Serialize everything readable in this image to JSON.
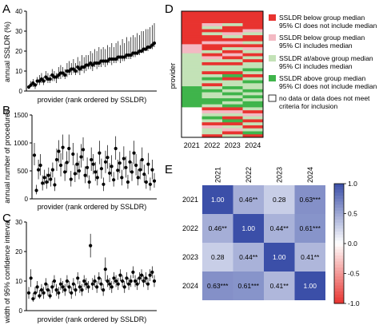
{
  "figure": {
    "panels": [
      "A",
      "B",
      "C",
      "D",
      "E"
    ]
  },
  "chart_data": [
    {
      "panel": "A",
      "type": "scatter",
      "title": "",
      "xlabel": "provider (rank ordered by SSLDR)",
      "ylabel": "annual SSLDR (%)",
      "ylim": [
        0,
        40
      ],
      "yticks": [
        0,
        10,
        20,
        30,
        40
      ],
      "grid": false,
      "series": [
        {
          "y": [
            2,
            3,
            4,
            3,
            5,
            5,
            6,
            5,
            7,
            6,
            6,
            8,
            7,
            7,
            8,
            9,
            9,
            8,
            10,
            10,
            11,
            11,
            10,
            12,
            11,
            12,
            12,
            13,
            13,
            14,
            13,
            14,
            14,
            14,
            15,
            15,
            15,
            15,
            16,
            16,
            16,
            16,
            17,
            17,
            17,
            17,
            18,
            18,
            18,
            19,
            19,
            19,
            20,
            20,
            21,
            21,
            22,
            22,
            23,
            24
          ]
        }
      ],
      "ranges": [
        [
          1,
          3
        ],
        [
          2,
          5
        ],
        [
          2,
          6
        ],
        [
          1,
          4
        ],
        [
          3,
          7
        ],
        [
          3,
          8
        ],
        [
          4,
          9
        ],
        [
          3,
          7
        ],
        [
          5,
          10
        ],
        [
          4,
          9
        ],
        [
          4,
          8
        ],
        [
          5,
          11
        ],
        [
          5,
          10
        ],
        [
          4,
          9
        ],
        [
          6,
          12
        ],
        [
          6,
          13
        ],
        [
          7,
          12
        ],
        [
          6,
          11
        ],
        [
          7,
          14
        ],
        [
          8,
          15
        ],
        [
          8,
          14
        ],
        [
          9,
          16
        ],
        [
          8,
          14
        ],
        [
          9,
          17
        ],
        [
          8,
          15
        ],
        [
          10,
          18
        ],
        [
          9,
          17
        ],
        [
          10,
          18
        ],
        [
          11,
          18
        ],
        [
          11,
          20
        ],
        [
          10,
          19
        ],
        [
          12,
          21
        ],
        [
          11,
          20
        ],
        [
          12,
          22
        ],
        [
          12,
          21
        ],
        [
          13,
          22
        ],
        [
          12,
          21
        ],
        [
          13,
          23
        ],
        [
          14,
          22
        ],
        [
          13,
          24
        ],
        [
          14,
          22
        ],
        [
          14,
          24
        ],
        [
          15,
          25
        ],
        [
          14,
          23
        ],
        [
          15,
          26
        ],
        [
          15,
          24
        ],
        [
          16,
          27
        ],
        [
          16,
          25
        ],
        [
          16,
          27
        ],
        [
          17,
          28
        ],
        [
          17,
          27
        ],
        [
          18,
          29
        ],
        [
          18,
          28
        ],
        [
          19,
          30
        ],
        [
          19,
          30
        ],
        [
          20,
          31
        ],
        [
          20,
          31
        ],
        [
          21,
          32
        ],
        [
          21,
          33
        ],
        [
          22,
          34
        ]
      ]
    },
    {
      "panel": "B",
      "type": "scatter",
      "title": "",
      "xlabel": "provider (rank ordered by SSLDR)",
      "ylabel": "annual number of procedures",
      "ylim": [
        0,
        1500
      ],
      "yticks": [
        0,
        500,
        1000,
        1500
      ],
      "grid": false,
      "series": [
        {
          "y": [
            780,
            150,
            520,
            600,
            280,
            380,
            300,
            420,
            350,
            520,
            250,
            700,
            850,
            600,
            920,
            480,
            650,
            900,
            350,
            800,
            450,
            620,
            500,
            750,
            880,
            420,
            560,
            300,
            700,
            620,
            480,
            380,
            820,
            540,
            260,
            660,
            740,
            460,
            580,
            340,
            900,
            510,
            640,
            380,
            720,
            560,
            300,
            660,
            480,
            820,
            600,
            380,
            520,
            700,
            440,
            300,
            620,
            260,
            520,
            320
          ]
        }
      ],
      "ranges": [
        [
          600,
          1000
        ],
        [
          80,
          250
        ],
        [
          350,
          700
        ],
        [
          420,
          800
        ],
        [
          150,
          420
        ],
        [
          250,
          520
        ],
        [
          180,
          450
        ],
        [
          280,
          560
        ],
        [
          220,
          480
        ],
        [
          380,
          650
        ],
        [
          140,
          380
        ],
        [
          500,
          900
        ],
        [
          650,
          1050
        ],
        [
          400,
          820
        ],
        [
          700,
          1150
        ],
        [
          320,
          650
        ],
        [
          470,
          850
        ],
        [
          650,
          1150
        ],
        [
          220,
          500
        ],
        [
          600,
          1000
        ],
        [
          300,
          620
        ],
        [
          430,
          820
        ],
        [
          350,
          680
        ],
        [
          560,
          980
        ],
        [
          680,
          1100
        ],
        [
          280,
          580
        ],
        [
          380,
          740
        ],
        [
          180,
          420
        ],
        [
          500,
          920
        ],
        [
          440,
          800
        ],
        [
          320,
          660
        ],
        [
          240,
          520
        ],
        [
          620,
          1040
        ],
        [
          360,
          720
        ],
        [
          140,
          380
        ],
        [
          460,
          860
        ],
        [
          540,
          960
        ],
        [
          300,
          640
        ],
        [
          400,
          780
        ],
        [
          220,
          480
        ],
        [
          700,
          1120
        ],
        [
          340,
          700
        ],
        [
          460,
          840
        ],
        [
          240,
          520
        ],
        [
          520,
          940
        ],
        [
          380,
          760
        ],
        [
          180,
          430
        ],
        [
          470,
          860
        ],
        [
          320,
          660
        ],
        [
          620,
          1040
        ],
        [
          420,
          800
        ],
        [
          240,
          530
        ],
        [
          350,
          700
        ],
        [
          500,
          920
        ],
        [
          290,
          610
        ],
        [
          180,
          430
        ],
        [
          440,
          820
        ],
        [
          150,
          380
        ],
        [
          350,
          700
        ],
        [
          200,
          460
        ]
      ]
    },
    {
      "panel": "C",
      "type": "scatter",
      "title": "",
      "xlabel": "provider (rank ordered by SSLDR)",
      "ylabel": "width of 95% confidence interval",
      "ylim": [
        0,
        30
      ],
      "yticks": [
        0,
        10,
        20,
        30
      ],
      "grid": false,
      "series": [
        {
          "y": [
            6,
            11,
            4,
            6,
            8,
            5,
            7,
            6,
            9,
            7,
            5,
            8,
            10,
            7,
            6,
            9,
            8,
            7,
            10,
            8,
            6,
            9,
            7,
            11,
            8,
            7,
            10,
            9,
            8,
            22,
            9,
            10,
            8,
            11,
            9,
            7,
            14,
            10,
            9,
            8,
            11,
            10,
            9,
            12,
            10,
            8,
            11,
            9,
            10,
            13,
            10,
            9,
            11,
            12,
            10,
            11,
            9,
            12,
            13,
            10
          ]
        }
      ],
      "ranges": [
        [
          4,
          8
        ],
        [
          8,
          14
        ],
        [
          3,
          6
        ],
        [
          4,
          8
        ],
        [
          6,
          10
        ],
        [
          4,
          7
        ],
        [
          5,
          9
        ],
        [
          4,
          8
        ],
        [
          7,
          11
        ],
        [
          5,
          9
        ],
        [
          4,
          7
        ],
        [
          6,
          10
        ],
        [
          8,
          12
        ],
        [
          5,
          9
        ],
        [
          4,
          8
        ],
        [
          7,
          11
        ],
        [
          6,
          10
        ],
        [
          5,
          9
        ],
        [
          8,
          12
        ],
        [
          6,
          10
        ],
        [
          4,
          8
        ],
        [
          7,
          11
        ],
        [
          5,
          9
        ],
        [
          9,
          13
        ],
        [
          6,
          10
        ],
        [
          5,
          9
        ],
        [
          8,
          12
        ],
        [
          7,
          11
        ],
        [
          6,
          10
        ],
        [
          18,
          26
        ],
        [
          7,
          11
        ],
        [
          8,
          12
        ],
        [
          6,
          10
        ],
        [
          9,
          13
        ],
        [
          7,
          11
        ],
        [
          5,
          9
        ],
        [
          10,
          18
        ],
        [
          8,
          12
        ],
        [
          7,
          11
        ],
        [
          6,
          10
        ],
        [
          9,
          13
        ],
        [
          8,
          12
        ],
        [
          7,
          11
        ],
        [
          10,
          14
        ],
        [
          8,
          12
        ],
        [
          6,
          10
        ],
        [
          9,
          13
        ],
        [
          7,
          11
        ],
        [
          8,
          12
        ],
        [
          11,
          15
        ],
        [
          8,
          12
        ],
        [
          7,
          11
        ],
        [
          9,
          13
        ],
        [
          10,
          14
        ],
        [
          8,
          12
        ],
        [
          9,
          13
        ],
        [
          7,
          11
        ],
        [
          10,
          14
        ],
        [
          11,
          15
        ],
        [
          8,
          12
        ]
      ]
    },
    {
      "panel": "D",
      "type": "heatmap",
      "title": "",
      "xlabel": "",
      "ylabel": "provider",
      "columns": [
        "2021",
        "2022",
        "2023",
        "2024"
      ],
      "legend": [
        {
          "label": "SSLDR below group median 95% CI does not include median",
          "color": "#e8332f"
        },
        {
          "label": "SSLDR below group median 95% CI includes median",
          "color": "#f3b9c3"
        },
        {
          "label": "SSLDR at/above group median 95% CI includes median",
          "color": "#c3e2b7"
        },
        {
          "label": "SSLDR above group median 95% CI does not include median",
          "color": "#3fb44b"
        },
        {
          "label": "no data or data does not meet criteria for inclusion",
          "color": "#ffffff"
        }
      ],
      "codes": {
        "col2021": [
          0,
          0,
          0,
          0,
          0,
          0,
          0,
          0,
          0,
          0,
          0,
          1,
          1,
          1,
          2,
          2,
          2,
          2,
          2,
          2,
          2,
          2,
          2,
          2,
          2,
          3,
          3,
          3,
          3,
          3,
          3,
          3,
          4,
          4,
          4,
          4,
          4,
          4,
          4,
          4,
          4,
          4
        ],
        "col2022": [
          0,
          0,
          0,
          0,
          1,
          2,
          0,
          2,
          0,
          0,
          1,
          0,
          0,
          2,
          0,
          1,
          2,
          0,
          2,
          2,
          0,
          2,
          3,
          2,
          0,
          2,
          3,
          2,
          2,
          3,
          3,
          2,
          0,
          1,
          2,
          3,
          2,
          0,
          1,
          2,
          2,
          0
        ],
        "col2023": [
          0,
          0,
          0,
          0,
          2,
          0,
          0,
          1,
          2,
          0,
          1,
          0,
          2,
          0,
          1,
          0,
          2,
          0,
          2,
          2,
          0,
          3,
          0,
          2,
          2,
          3,
          2,
          3,
          2,
          3,
          2,
          3,
          0,
          1,
          2,
          0,
          3,
          0,
          2,
          1,
          0,
          2
        ],
        "col2024": [
          0,
          0,
          0,
          0,
          0,
          0,
          1,
          2,
          0,
          0,
          2,
          0,
          1,
          2,
          0,
          2,
          0,
          2,
          2,
          3,
          2,
          0,
          2,
          3,
          2,
          2,
          3,
          2,
          3,
          2,
          3,
          3,
          2,
          0,
          1,
          2,
          0,
          2,
          0,
          2,
          3,
          0
        ]
      }
    },
    {
      "panel": "E",
      "type": "heatmap",
      "title": "",
      "columns": [
        "2021",
        "2022",
        "2023",
        "2024"
      ],
      "rows": [
        "2021",
        "2022",
        "2023",
        "2024"
      ],
      "cells": [
        [
          "1.00",
          "0.46**",
          "0.28",
          "0.63***"
        ],
        [
          "0.46**",
          "1.00",
          "0.44**",
          "0.61***"
        ],
        [
          "0.28",
          "0.44**",
          "1.00",
          "0.41**"
        ],
        [
          "0.63***",
          "0.61***",
          "0.41**",
          "1.00"
        ]
      ],
      "values": [
        [
          1.0,
          0.46,
          0.28,
          0.63
        ],
        [
          0.46,
          1.0,
          0.44,
          0.61
        ],
        [
          0.28,
          0.44,
          1.0,
          0.41
        ],
        [
          0.63,
          0.61,
          0.41,
          1.0
        ]
      ],
      "colorbar": {
        "ticks": [
          "1.0",
          "0.5",
          "0.0",
          "-0.5",
          "-1.0"
        ],
        "range": [
          -1,
          1
        ],
        "high_color": "#3b4fa8",
        "mid_color": "#ffffff",
        "low_color": "#e8332f"
      }
    }
  ]
}
